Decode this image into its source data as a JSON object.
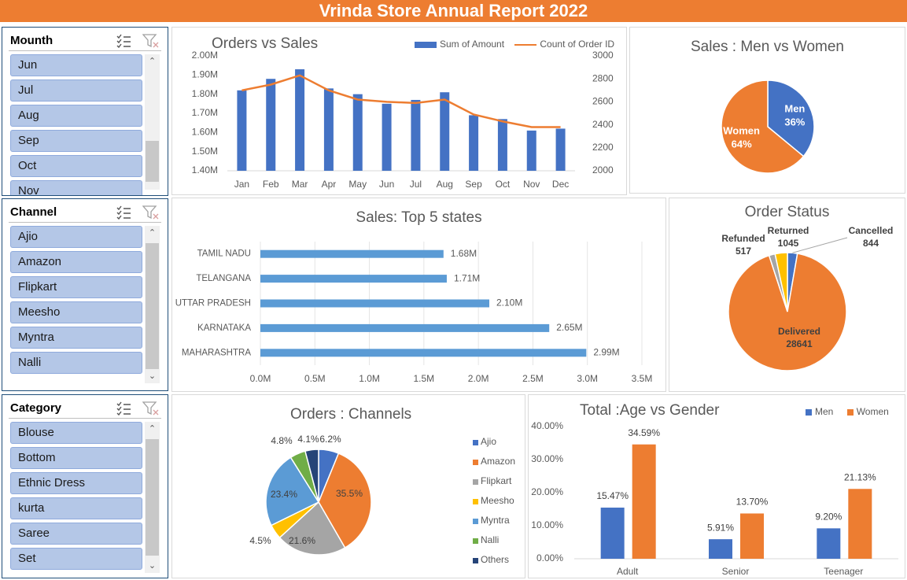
{
  "report_title": "Vrinda Store Annual Report 2022",
  "colors": {
    "blue": "#4472c4",
    "orange": "#ed7d31",
    "gray": "#a5a5a5",
    "yellow": "#ffc000",
    "lightblue": "#5b9bd5",
    "green": "#70ad47",
    "navy": "#264478"
  },
  "slicers": [
    {
      "title": "Mounth",
      "items": [
        "Jun",
        "Jul",
        "Aug",
        "Sep",
        "Oct",
        "Nov"
      ],
      "icons": [
        "multi-select-icon",
        "clear-filter-icon"
      ]
    },
    {
      "title": "Channel",
      "items": [
        "Ajio",
        "Amazon",
        "Flipkart",
        "Meesho",
        "Myntra",
        "Nalli"
      ],
      "icons": [
        "multi-select-icon",
        "clear-filter-icon"
      ]
    },
    {
      "title": "Category",
      "items": [
        "Blouse",
        "Bottom",
        "Ethnic Dress",
        "kurta",
        "Saree",
        "Set"
      ],
      "icons": [
        "multi-select-icon",
        "clear-filter-icon"
      ]
    }
  ],
  "chart_data": [
    {
      "id": "orders_vs_sales",
      "type": "bar",
      "title": "Orders vs Sales",
      "categories": [
        "Jan",
        "Feb",
        "Mar",
        "Apr",
        "May",
        "Jun",
        "Jul",
        "Aug",
        "Sep",
        "Oct",
        "Nov",
        "Dec"
      ],
      "series": [
        {
          "name": "Sum of Amount",
          "type": "bar",
          "axis": "left",
          "values": [
            1.82,
            1.88,
            1.93,
            1.83,
            1.8,
            1.75,
            1.77,
            1.81,
            1.69,
            1.67,
            1.61,
            1.62
          ]
        },
        {
          "name": "Count of Order ID",
          "type": "line",
          "axis": "right",
          "values": [
            2700,
            2750,
            2830,
            2700,
            2620,
            2600,
            2590,
            2620,
            2490,
            2430,
            2380,
            2380
          ]
        }
      ],
      "ylim_left": [
        1.4,
        2.0
      ],
      "yticks_left": [
        "2.00M",
        "1.90M",
        "1.80M",
        "1.70M",
        "1.60M",
        "1.50M",
        "1.40M"
      ],
      "ylim_right": [
        2000,
        3000
      ],
      "yticks_right": [
        "3000",
        "2800",
        "2600",
        "2400",
        "2200",
        "2000"
      ],
      "legend": "top-right",
      "grid": false
    },
    {
      "id": "men_vs_women",
      "type": "pie",
      "title": "Sales : Men vs Women",
      "labels": [
        "Men",
        "Women"
      ],
      "values": [
        36,
        64
      ],
      "value_labels": [
        "36%",
        "64%"
      ]
    },
    {
      "id": "top5_states",
      "type": "bar",
      "orientation": "horizontal",
      "title": "Sales: Top 5 states",
      "categories": [
        "TAMIL NADU",
        "TELANGANA",
        "UTTAR PRADESH",
        "KARNATAKA",
        "MAHARASHTRA"
      ],
      "values": [
        1.68,
        1.71,
        2.1,
        2.65,
        2.99
      ],
      "value_labels": [
        "1.68M",
        "1.71M",
        "2.10M",
        "2.65M",
        "2.99M"
      ],
      "xlim": [
        0,
        3.5
      ],
      "xticks": [
        "0.0M",
        "0.5M",
        "1.0M",
        "1.5M",
        "2.0M",
        "2.5M",
        "3.0M",
        "3.5M"
      ],
      "grid": true
    },
    {
      "id": "order_status",
      "type": "pie",
      "title": "Order Status",
      "labels": [
        "Cancelled",
        "Delivered",
        "Refunded",
        "Returned"
      ],
      "values": [
        844,
        28641,
        517,
        1045
      ],
      "value_labels": [
        "844",
        "28641",
        "517",
        "1045"
      ]
    },
    {
      "id": "orders_channels",
      "type": "pie",
      "title": "Orders : Channels",
      "labels": [
        "Ajio",
        "Amazon",
        "Flipkart",
        "Meesho",
        "Myntra",
        "Nalli",
        "Others"
      ],
      "values": [
        6.2,
        35.5,
        21.6,
        4.5,
        23.4,
        4.8,
        4.1
      ],
      "value_labels": [
        "6.2%",
        "35.5%",
        "21.6%",
        "4.5%",
        "23.4%",
        "4.8%",
        "4.1%"
      ],
      "legend": "right"
    },
    {
      "id": "age_vs_gender",
      "type": "bar",
      "title": "Total :Age vs Gender",
      "categories": [
        "Adult",
        "Senior",
        "Teenager"
      ],
      "series": [
        {
          "name": "Men",
          "values": [
            15.47,
            5.91,
            9.2
          ],
          "value_labels": [
            "15.47%",
            "5.91%",
            "9.20%"
          ]
        },
        {
          "name": "Women",
          "values": [
            34.59,
            13.7,
            21.13
          ],
          "value_labels": [
            "34.59%",
            "13.70%",
            "21.13%"
          ]
        }
      ],
      "ylim": [
        0,
        40
      ],
      "yticks": [
        "40.00%",
        "30.00%",
        "20.00%",
        "10.00%",
        "0.00%"
      ],
      "legend": "top-right"
    }
  ]
}
